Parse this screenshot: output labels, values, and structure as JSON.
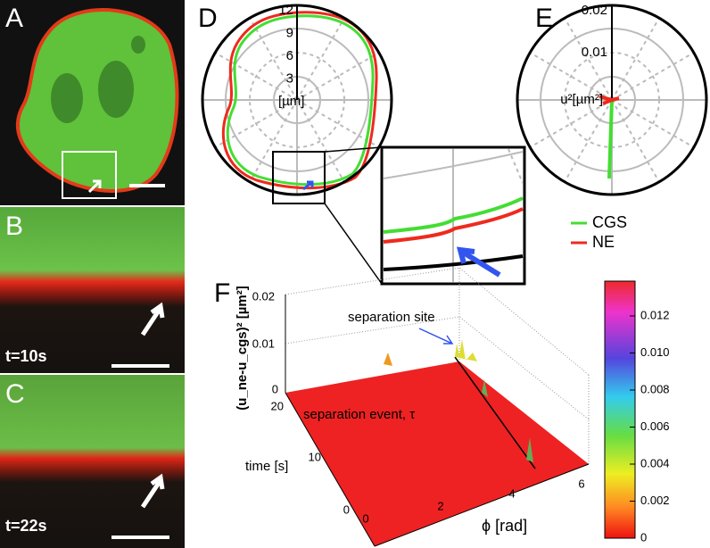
{
  "panels": {
    "a": {
      "label": "A"
    },
    "b": {
      "label": "B",
      "time": "t=10s"
    },
    "c": {
      "label": "C",
      "time": "t=22s"
    },
    "d": {
      "label": "D",
      "rticks": [
        "12",
        "9",
        "6",
        "3"
      ],
      "unit": "[µm]"
    },
    "e": {
      "label": "E",
      "rticks": [
        "0.02",
        "0.01"
      ],
      "unit": "u²[µm²]"
    },
    "legend": [
      {
        "name": "CGS",
        "color": "#44dd33"
      },
      {
        "name": "NE",
        "color": "#ee2a1e"
      }
    ],
    "f": {
      "label": "F",
      "zlabel": "(u_ne-u_cgs)² [µm²]",
      "zticks": [
        "0.02",
        "0.01",
        "0"
      ],
      "ylabel": "time [s]",
      "yticks": [
        "20",
        "10",
        "0"
      ],
      "xlabel": "ϕ  [rad]",
      "xticks": [
        "0",
        "2",
        "4",
        "6"
      ],
      "annotations": [
        "separation site",
        "separation event, τ"
      ],
      "colorbar_ticks": [
        "0.012",
        "0.010",
        "0.008",
        "0.006",
        "0.004",
        "0.002",
        "0"
      ]
    }
  }
}
